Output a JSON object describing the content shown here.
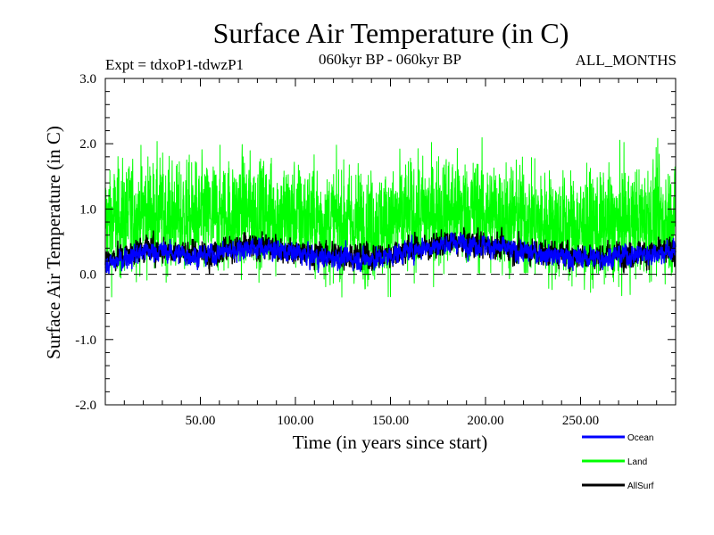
{
  "chart_data": {
    "type": "line",
    "title": "Surface Air Temperature (in C)",
    "subtitle_left": "Expt = tdxoP1-tdwzP1",
    "subtitle_center": "060kyr BP - 060kyr BP",
    "subtitle_right": "ALL_MONTHS",
    "xlabel": "Time (in years since start)",
    "ylabel": "Surface Air Temperature (in C)",
    "xlim": [
      0,
      300
    ],
    "ylim": [
      -2.0,
      3.0
    ],
    "x_ticks": [
      50,
      100,
      150,
      200,
      250
    ],
    "x_tick_labels": [
      "50.00",
      "100.00",
      "150.00",
      "200.00",
      "250.00"
    ],
    "y_ticks": [
      -2.0,
      -1.0,
      0.0,
      1.0,
      2.0,
      3.0
    ],
    "y_tick_labels": [
      "-2.0",
      "-1.0",
      "0.0",
      "1.0",
      "2.0",
      "3.0"
    ],
    "reference_line": {
      "y": 0.0,
      "style": "dashed"
    },
    "series_points_per_year": 12,
    "series": [
      {
        "name": "Land",
        "color": "#00ff00",
        "label": "Land",
        "annual_mean": [
          0.8,
          0.85,
          0.95,
          0.9,
          0.85,
          0.85,
          0.9,
          0.95,
          0.95,
          0.9,
          0.85,
          0.8,
          0.8,
          0.75,
          0.75,
          0.85,
          0.9,
          0.95,
          1.0,
          0.95,
          0.9,
          0.85,
          0.8,
          0.75,
          0.7,
          0.7,
          0.75,
          0.8,
          0.85,
          0.85
        ],
        "min": -0.78,
        "max": 2.35
      },
      {
        "name": "AllSurf",
        "color": "#000000",
        "label": "AllSurf",
        "annual_mean": [
          0.25,
          0.3,
          0.4,
          0.38,
          0.35,
          0.33,
          0.38,
          0.42,
          0.42,
          0.38,
          0.33,
          0.3,
          0.3,
          0.28,
          0.28,
          0.35,
          0.4,
          0.45,
          0.5,
          0.48,
          0.42,
          0.38,
          0.35,
          0.32,
          0.3,
          0.28,
          0.3,
          0.33,
          0.35,
          0.35
        ],
        "min": -0.4,
        "max": 1.05
      },
      {
        "name": "Ocean",
        "color": "#0000ff",
        "label": "Ocean",
        "annual_mean": [
          0.1,
          0.25,
          0.35,
          0.35,
          0.3,
          0.28,
          0.35,
          0.4,
          0.4,
          0.35,
          0.3,
          0.25,
          0.25,
          0.23,
          0.25,
          0.33,
          0.4,
          0.45,
          0.5,
          0.45,
          0.4,
          0.35,
          0.32,
          0.28,
          0.25,
          0.25,
          0.28,
          0.3,
          0.32,
          0.35
        ],
        "min": -0.42,
        "max": 1.0
      }
    ],
    "legend": {
      "placement": "bottom-right",
      "order": [
        "Ocean",
        "Land",
        "AllSurf"
      ]
    }
  }
}
